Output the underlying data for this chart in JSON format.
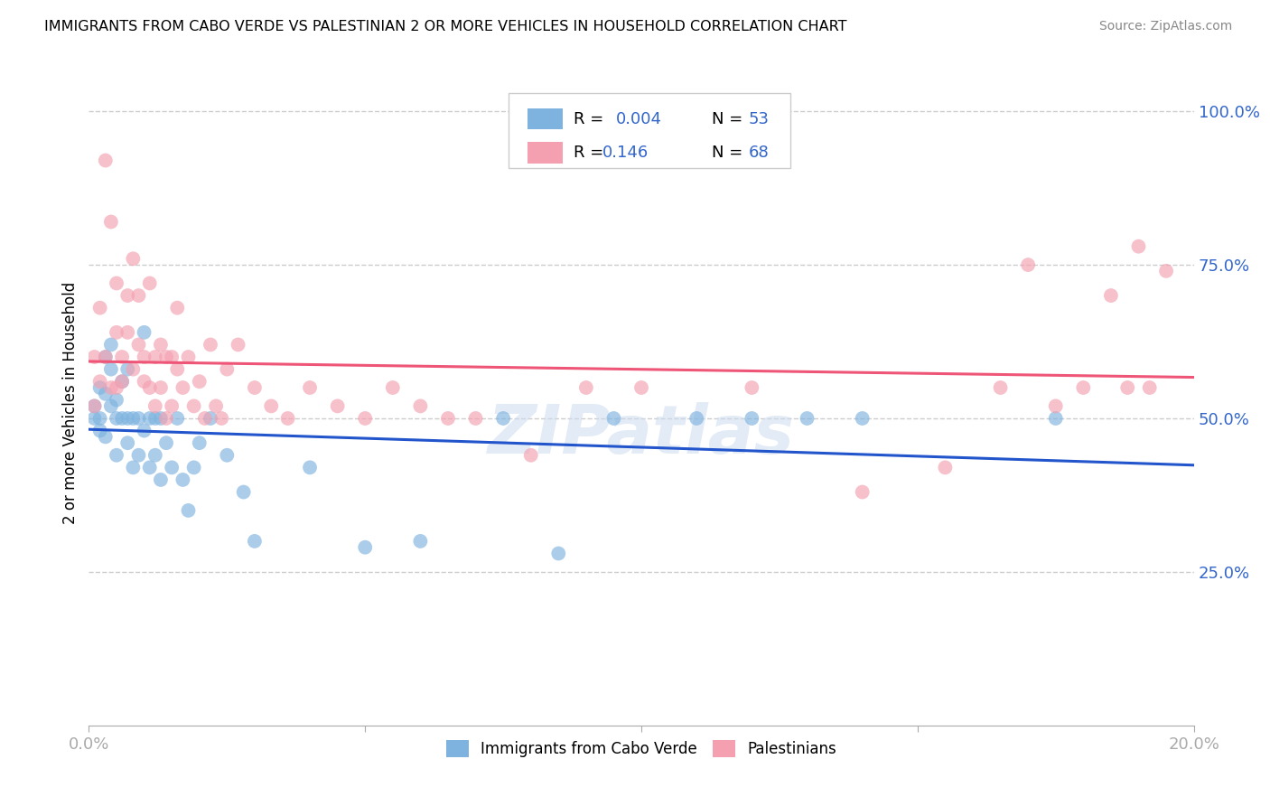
{
  "title": "IMMIGRANTS FROM CABO VERDE VS PALESTINIAN 2 OR MORE VEHICLES IN HOUSEHOLD CORRELATION CHART",
  "source": "Source: ZipAtlas.com",
  "ylabel": "2 or more Vehicles in Household",
  "xlim": [
    0.0,
    0.2
  ],
  "ylim": [
    0.0,
    1.05
  ],
  "yticks_right": [
    0.25,
    0.5,
    0.75,
    1.0
  ],
  "ytick_labels_right": [
    "25.0%",
    "50.0%",
    "75.0%",
    "100.0%"
  ],
  "watermark": "ZIPatlas",
  "color_blue": "#7EB3E0",
  "color_pink": "#F4A0B0",
  "line_blue": "#2255CC",
  "line_pink": "#EE5577",
  "cabo_verde_x": [
    0.001,
    0.001,
    0.002,
    0.002,
    0.002,
    0.003,
    0.003,
    0.003,
    0.004,
    0.004,
    0.004,
    0.005,
    0.005,
    0.005,
    0.006,
    0.006,
    0.007,
    0.007,
    0.007,
    0.008,
    0.008,
    0.009,
    0.009,
    0.01,
    0.01,
    0.011,
    0.011,
    0.012,
    0.012,
    0.013,
    0.013,
    0.014,
    0.015,
    0.016,
    0.017,
    0.018,
    0.019,
    0.02,
    0.022,
    0.025,
    0.028,
    0.03,
    0.04,
    0.05,
    0.06,
    0.075,
    0.085,
    0.095,
    0.11,
    0.12,
    0.13,
    0.14,
    0.175
  ],
  "cabo_verde_y": [
    0.5,
    0.52,
    0.5,
    0.55,
    0.48,
    0.6,
    0.54,
    0.47,
    0.52,
    0.58,
    0.62,
    0.5,
    0.53,
    0.44,
    0.5,
    0.56,
    0.5,
    0.46,
    0.58,
    0.5,
    0.42,
    0.5,
    0.44,
    0.64,
    0.48,
    0.5,
    0.42,
    0.5,
    0.44,
    0.5,
    0.4,
    0.46,
    0.42,
    0.5,
    0.4,
    0.35,
    0.42,
    0.46,
    0.5,
    0.44,
    0.38,
    0.3,
    0.42,
    0.29,
    0.3,
    0.5,
    0.28,
    0.5,
    0.5,
    0.5,
    0.5,
    0.5,
    0.5
  ],
  "palestinian_x": [
    0.001,
    0.001,
    0.002,
    0.002,
    0.003,
    0.003,
    0.004,
    0.004,
    0.005,
    0.005,
    0.005,
    0.006,
    0.006,
    0.007,
    0.007,
    0.008,
    0.008,
    0.009,
    0.009,
    0.01,
    0.01,
    0.011,
    0.011,
    0.012,
    0.012,
    0.013,
    0.013,
    0.014,
    0.014,
    0.015,
    0.015,
    0.016,
    0.016,
    0.017,
    0.018,
    0.019,
    0.02,
    0.021,
    0.022,
    0.023,
    0.024,
    0.025,
    0.027,
    0.03,
    0.033,
    0.036,
    0.04,
    0.045,
    0.05,
    0.055,
    0.06,
    0.065,
    0.07,
    0.08,
    0.09,
    0.1,
    0.12,
    0.14,
    0.155,
    0.165,
    0.17,
    0.175,
    0.18,
    0.185,
    0.188,
    0.19,
    0.192,
    0.195
  ],
  "palestinian_y": [
    0.52,
    0.6,
    0.56,
    0.68,
    0.92,
    0.6,
    0.82,
    0.55,
    0.64,
    0.72,
    0.55,
    0.6,
    0.56,
    0.64,
    0.7,
    0.76,
    0.58,
    0.62,
    0.7,
    0.56,
    0.6,
    0.72,
    0.55,
    0.6,
    0.52,
    0.62,
    0.55,
    0.6,
    0.5,
    0.6,
    0.52,
    0.68,
    0.58,
    0.55,
    0.6,
    0.52,
    0.56,
    0.5,
    0.62,
    0.52,
    0.5,
    0.58,
    0.62,
    0.55,
    0.52,
    0.5,
    0.55,
    0.52,
    0.5,
    0.55,
    0.52,
    0.5,
    0.5,
    0.44,
    0.55,
    0.55,
    0.55,
    0.38,
    0.42,
    0.55,
    0.75,
    0.52,
    0.55,
    0.7,
    0.55,
    0.78,
    0.55,
    0.74
  ]
}
